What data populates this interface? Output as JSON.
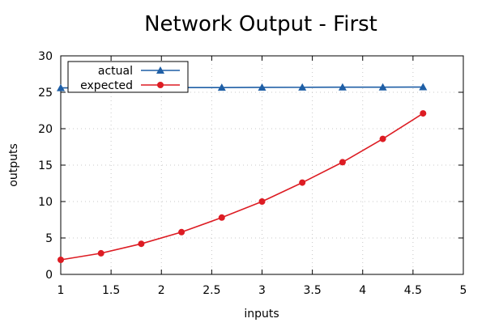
{
  "chart_data": {
    "type": "line",
    "title": "Network Output - First",
    "xlabel": "inputs",
    "ylabel": "outputs",
    "xlim": [
      1,
      5
    ],
    "ylim": [
      0,
      30
    ],
    "x_ticks": [
      "1",
      "1.5",
      "2",
      "2.5",
      "3",
      "3.5",
      "4",
      "4.5",
      "5"
    ],
    "y_ticks": [
      "0",
      "5",
      "10",
      "15",
      "20",
      "25",
      "30"
    ],
    "grid": true,
    "legend_position": "top-left",
    "x": [
      1.0,
      1.4,
      1.8,
      2.2,
      2.6,
      3.0,
      3.4,
      3.8,
      4.2,
      4.6
    ],
    "series": [
      {
        "name": "actual",
        "marker": "triangle",
        "color": "#1f5fa6",
        "values": [
          25.6,
          25.6,
          25.6,
          25.65,
          25.65,
          25.67,
          25.68,
          25.7,
          25.7,
          25.72
        ]
      },
      {
        "name": "expected",
        "marker": "circle",
        "color": "#dd1c23",
        "values": [
          2.0,
          2.9,
          4.2,
          5.8,
          7.8,
          10.0,
          12.6,
          15.4,
          18.6,
          22.1
        ]
      }
    ]
  }
}
